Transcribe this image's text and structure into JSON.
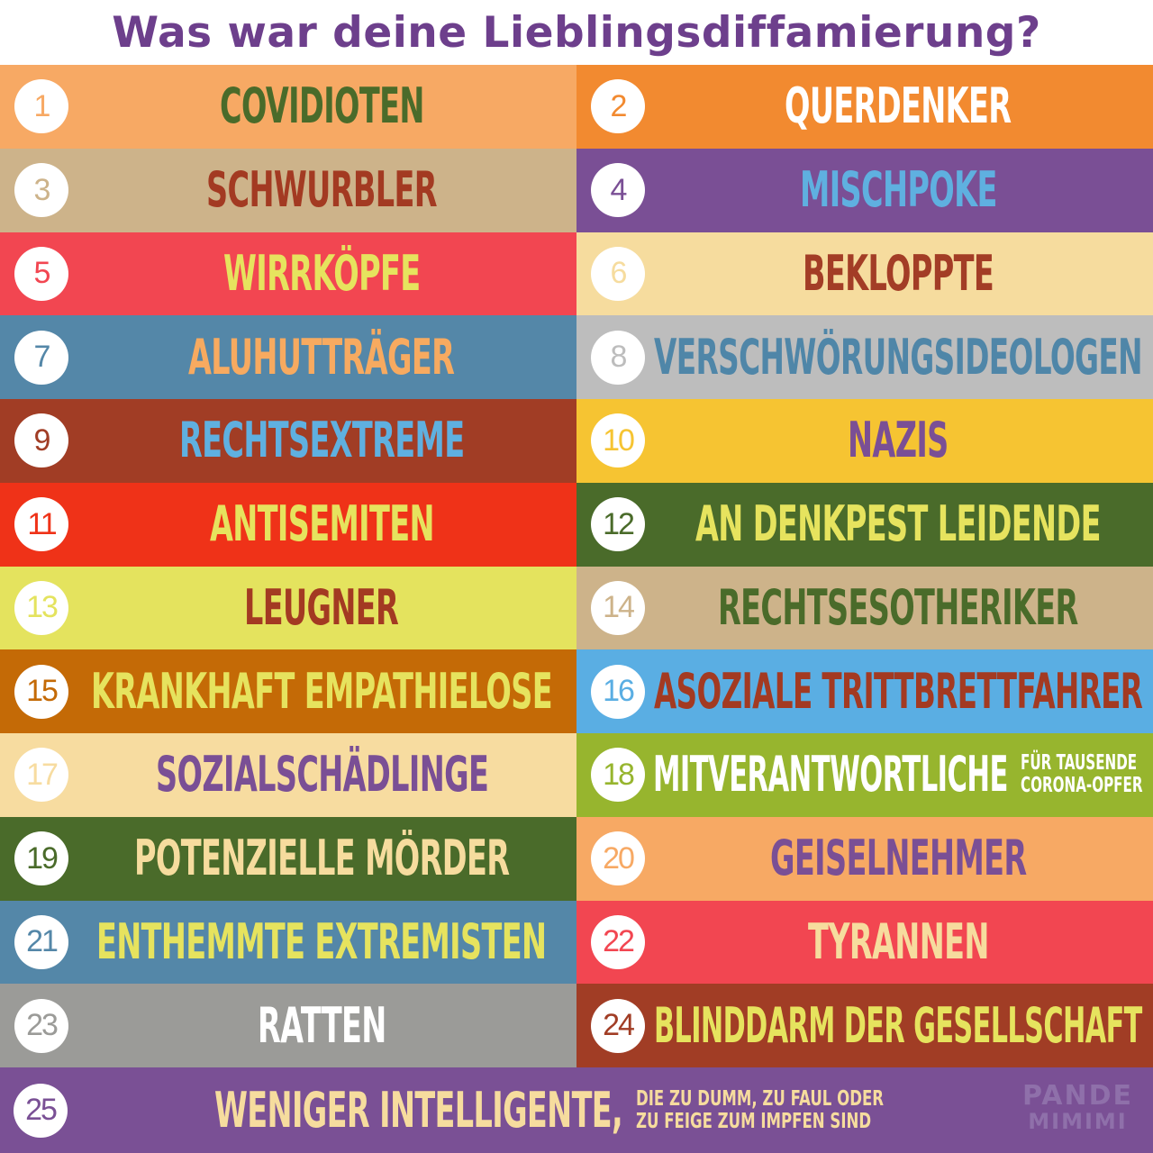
{
  "title": "Was war deine Lieblingsdiffamierung?",
  "rows": [
    {
      "number": "1",
      "label": "Covidioten",
      "sub": "",
      "bg": "#f7a964",
      "fg": "#4a6b2a"
    },
    {
      "number": "2",
      "label": "Querdenker",
      "sub": "",
      "bg": "#f28a30",
      "fg": "#ffffff"
    },
    {
      "number": "3",
      "label": "Schwurbler",
      "sub": "",
      "bg": "#cdb38a",
      "fg": "#a33a22"
    },
    {
      "number": "4",
      "label": "Mischpoke",
      "sub": "",
      "bg": "#7a4f95",
      "fg": "#5fb0e0"
    },
    {
      "number": "5",
      "label": "Wirrköpfe",
      "sub": "",
      "bg": "#f24651",
      "fg": "#e6e35e"
    },
    {
      "number": "6",
      "label": "Bekloppte",
      "sub": "",
      "bg": "#f6dc9e",
      "fg": "#a33d26"
    },
    {
      "number": "7",
      "label": "Aluhutträger",
      "sub": "",
      "bg": "#5487a8",
      "fg": "#f7aa60"
    },
    {
      "number": "8",
      "label": "Verschwörungsideologen",
      "sub": "",
      "bg": "#bdbdbd",
      "fg": "#4f86a8"
    },
    {
      "number": "9",
      "label": "Rechtsextreme",
      "sub": "",
      "bg": "#a13d25",
      "fg": "#5fb0e0"
    },
    {
      "number": "10",
      "label": "Nazis",
      "sub": "",
      "bg": "#f6c432",
      "fg": "#7a4f95"
    },
    {
      "number": "11",
      "label": "Antisemiten",
      "sub": "",
      "bg": "#ef3218",
      "fg": "#e6e35e"
    },
    {
      "number": "12",
      "label": "an Denkpest leidende",
      "sub": "",
      "bg": "#4a6b2a",
      "fg": "#e6e35e"
    },
    {
      "number": "13",
      "label": "Leugner",
      "sub": "",
      "bg": "#e4e35e",
      "fg": "#a33a22"
    },
    {
      "number": "14",
      "label": "Rechtsesotheriker",
      "sub": "",
      "bg": "#cdb38a",
      "fg": "#4a6b2a"
    },
    {
      "number": "15",
      "label": "krankhaft Empathielose",
      "sub": "",
      "bg": "#c46a06",
      "fg": "#e6e35e"
    },
    {
      "number": "16",
      "label": "asoziale Trittbrettfahrer",
      "sub": "",
      "bg": "#5aaee3",
      "fg": "#a33a22"
    },
    {
      "number": "17",
      "label": "Sozialschädlinge",
      "sub": "",
      "bg": "#f7dca0",
      "fg": "#7a4f95"
    },
    {
      "number": "18",
      "label": "Mitverantwortliche",
      "sub": "für tausende\nCorona-Opfer",
      "bg": "#97b52e",
      "fg": "#ffffff"
    },
    {
      "number": "19",
      "label": "potenzielle Mörder",
      "sub": "",
      "bg": "#4a6b2a",
      "fg": "#f6dc9e"
    },
    {
      "number": "20",
      "label": "Geiselnehmer",
      "sub": "",
      "bg": "#f7a964",
      "fg": "#7a4f95"
    },
    {
      "number": "21",
      "label": "enthemmte Extremisten",
      "sub": "",
      "bg": "#5487a8",
      "fg": "#e6e35e"
    },
    {
      "number": "22",
      "label": "Tyrannen",
      "sub": "",
      "bg": "#f24651",
      "fg": "#f6dc9e"
    },
    {
      "number": "23",
      "label": "Ratten",
      "sub": "",
      "bg": "#9b9b98",
      "fg": "#ffffff"
    },
    {
      "number": "24",
      "label": "Blinddarm der Gesellschaft",
      "sub": "",
      "bg": "#a13d25",
      "fg": "#e6e35e"
    }
  ],
  "last": {
    "number": "25",
    "label": "weniger Intelligente,",
    "sub": "die zu dumm, zu faul oder\nzu feige zum Impfen sind",
    "bg": "#7a5095",
    "fg": "#f6dc9e"
  },
  "logo": {
    "line1": "PANDE",
    "line2": "MIMIMI"
  }
}
